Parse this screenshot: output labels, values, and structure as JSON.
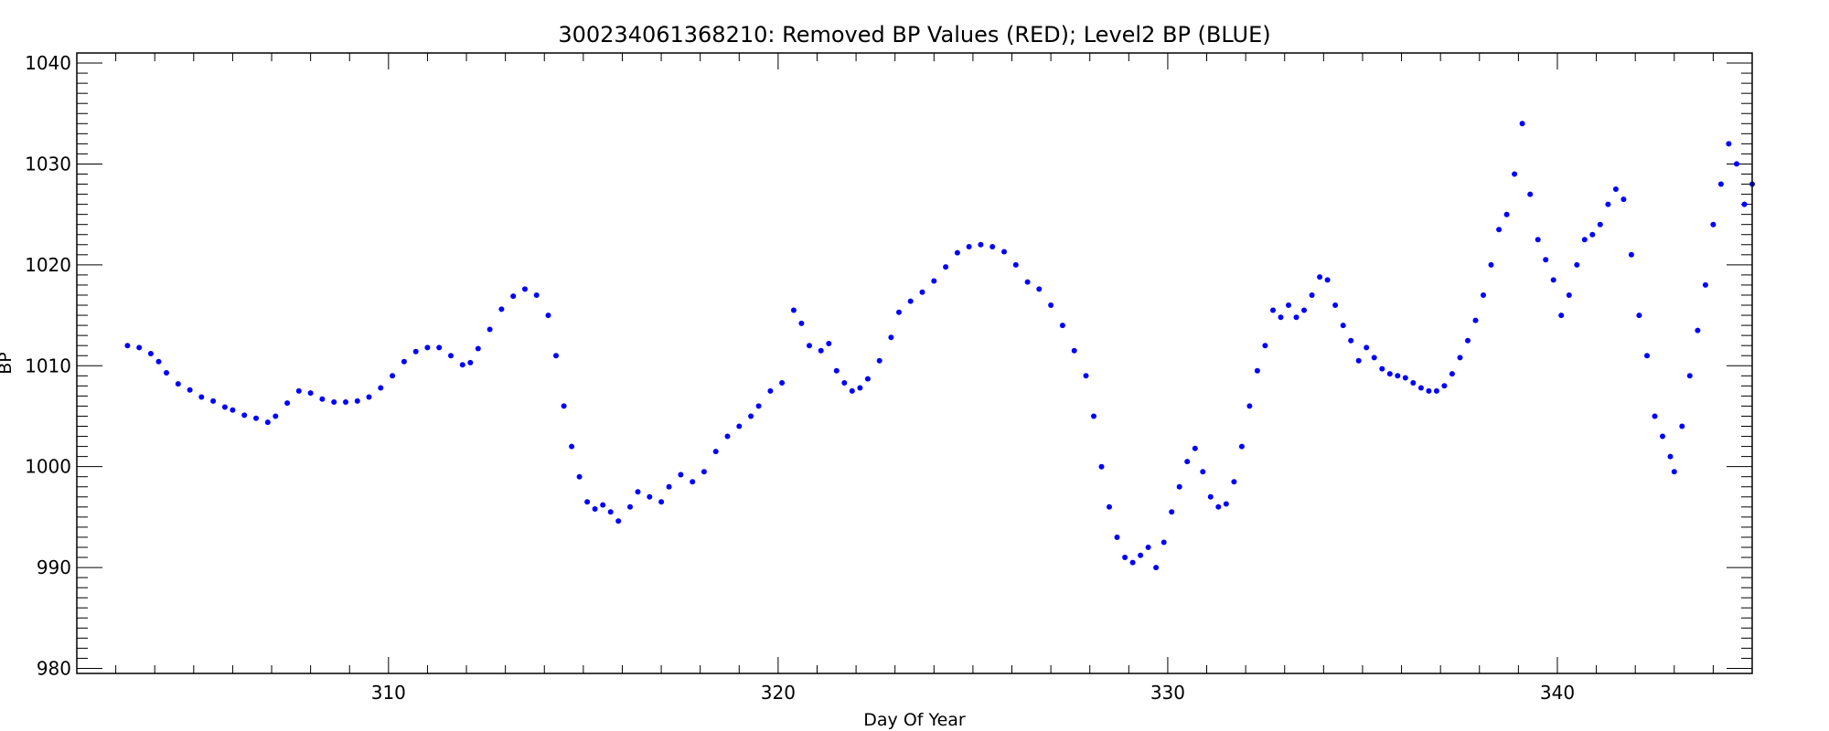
{
  "chart_data": {
    "type": "scatter",
    "title": "300234061368210: Removed BP Values (RED); Level2 BP (BLUE)",
    "xlabel": "Day Of Year",
    "ylabel": "BP",
    "xlim": [
      302,
      345
    ],
    "ylim": [
      979.5,
      1041
    ],
    "x_ticks": [
      310,
      320,
      330,
      340
    ],
    "y_ticks": [
      980,
      990,
      1000,
      1010,
      1020,
      1030,
      1040
    ],
    "grid": false,
    "legend": "none",
    "series": [
      {
        "color": "#0000ff",
        "points": [
          [
            303.3,
            1012.0
          ],
          [
            303.6,
            1011.8
          ],
          [
            303.9,
            1011.2
          ],
          [
            304.1,
            1010.4
          ],
          [
            304.3,
            1009.3
          ],
          [
            304.6,
            1008.2
          ],
          [
            304.9,
            1007.6
          ],
          [
            305.2,
            1006.9
          ],
          [
            305.5,
            1006.5
          ],
          [
            305.8,
            1005.9
          ],
          [
            306.0,
            1005.6
          ],
          [
            306.3,
            1005.1
          ],
          [
            306.6,
            1004.8
          ],
          [
            306.9,
            1004.4
          ],
          [
            307.1,
            1005.0
          ],
          [
            307.4,
            1006.3
          ],
          [
            307.7,
            1007.5
          ],
          [
            308.0,
            1007.3
          ],
          [
            308.3,
            1006.7
          ],
          [
            308.6,
            1006.4
          ],
          [
            308.9,
            1006.4
          ],
          [
            309.2,
            1006.5
          ],
          [
            309.5,
            1006.9
          ],
          [
            309.8,
            1007.8
          ],
          [
            310.1,
            1009.0
          ],
          [
            310.4,
            1010.4
          ],
          [
            310.7,
            1011.4
          ],
          [
            311.0,
            1011.8
          ],
          [
            311.3,
            1011.8
          ],
          [
            311.6,
            1011.0
          ],
          [
            311.9,
            1010.1
          ],
          [
            312.1,
            1010.3
          ],
          [
            312.3,
            1011.7
          ],
          [
            312.6,
            1013.6
          ],
          [
            312.9,
            1015.6
          ],
          [
            313.2,
            1016.9
          ],
          [
            313.5,
            1017.6
          ],
          [
            313.8,
            1017.0
          ],
          [
            314.1,
            1015.0
          ],
          [
            314.3,
            1011.0
          ],
          [
            314.5,
            1006.0
          ],
          [
            314.7,
            1002.0
          ],
          [
            314.9,
            999.0
          ],
          [
            315.1,
            996.5
          ],
          [
            315.3,
            995.8
          ],
          [
            315.5,
            996.2
          ],
          [
            315.7,
            995.5
          ],
          [
            315.9,
            994.6
          ],
          [
            316.2,
            996.0
          ],
          [
            316.4,
            997.5
          ],
          [
            316.7,
            997.0
          ],
          [
            317.0,
            996.5
          ],
          [
            317.2,
            998.0
          ],
          [
            317.5,
            999.2
          ],
          [
            317.8,
            998.5
          ],
          [
            318.1,
            999.5
          ],
          [
            318.4,
            1001.5
          ],
          [
            318.7,
            1003.0
          ],
          [
            319.0,
            1004.0
          ],
          [
            319.3,
            1005.0
          ],
          [
            319.5,
            1006.0
          ],
          [
            319.8,
            1007.5
          ],
          [
            320.1,
            1008.3
          ],
          [
            320.4,
            1015.5
          ],
          [
            320.6,
            1014.2
          ],
          [
            320.8,
            1012.0
          ],
          [
            321.1,
            1011.5
          ],
          [
            321.3,
            1012.2
          ],
          [
            321.5,
            1009.5
          ],
          [
            321.7,
            1008.3
          ],
          [
            321.9,
            1007.5
          ],
          [
            322.1,
            1007.8
          ],
          [
            322.3,
            1008.7
          ],
          [
            322.6,
            1010.5
          ],
          [
            322.9,
            1012.8
          ],
          [
            323.1,
            1015.3
          ],
          [
            323.4,
            1016.4
          ],
          [
            323.7,
            1017.3
          ],
          [
            324.0,
            1018.4
          ],
          [
            324.3,
            1019.8
          ],
          [
            324.6,
            1021.2
          ],
          [
            324.9,
            1021.8
          ],
          [
            325.2,
            1022.0
          ],
          [
            325.5,
            1021.8
          ],
          [
            325.8,
            1021.3
          ],
          [
            326.1,
            1020.0
          ],
          [
            326.4,
            1018.3
          ],
          [
            326.7,
            1017.6
          ],
          [
            327.0,
            1016.0
          ],
          [
            327.3,
            1014.0
          ],
          [
            327.6,
            1011.5
          ],
          [
            327.9,
            1009.0
          ],
          [
            328.1,
            1005.0
          ],
          [
            328.3,
            1000.0
          ],
          [
            328.5,
            996.0
          ],
          [
            328.7,
            993.0
          ],
          [
            328.9,
            991.0
          ],
          [
            329.1,
            990.5
          ],
          [
            329.3,
            991.2
          ],
          [
            329.5,
            992.0
          ],
          [
            329.7,
            990.0
          ],
          [
            329.9,
            992.5
          ],
          [
            330.1,
            995.5
          ],
          [
            330.3,
            998.0
          ],
          [
            330.5,
            1000.5
          ],
          [
            330.7,
            1001.8
          ],
          [
            330.9,
            999.5
          ],
          [
            331.1,
            997.0
          ],
          [
            331.3,
            996.0
          ],
          [
            331.5,
            996.3
          ],
          [
            331.7,
            998.5
          ],
          [
            331.9,
            1002.0
          ],
          [
            332.1,
            1006.0
          ],
          [
            332.3,
            1009.5
          ],
          [
            332.5,
            1012.0
          ],
          [
            332.7,
            1015.5
          ],
          [
            332.9,
            1014.8
          ],
          [
            333.1,
            1016.0
          ],
          [
            333.3,
            1014.8
          ],
          [
            333.5,
            1015.5
          ],
          [
            333.7,
            1017.0
          ],
          [
            333.9,
            1018.8
          ],
          [
            334.1,
            1018.5
          ],
          [
            334.3,
            1016.0
          ],
          [
            334.5,
            1014.0
          ],
          [
            334.7,
            1012.5
          ],
          [
            334.9,
            1010.5
          ],
          [
            335.1,
            1011.8
          ],
          [
            335.3,
            1010.8
          ],
          [
            335.5,
            1009.7
          ],
          [
            335.7,
            1009.2
          ],
          [
            335.9,
            1009.0
          ],
          [
            336.1,
            1008.8
          ],
          [
            336.3,
            1008.3
          ],
          [
            336.5,
            1007.8
          ],
          [
            336.7,
            1007.5
          ],
          [
            336.9,
            1007.5
          ],
          [
            337.1,
            1008.0
          ],
          [
            337.3,
            1009.2
          ],
          [
            337.5,
            1010.8
          ],
          [
            337.7,
            1012.5
          ],
          [
            337.9,
            1014.5
          ],
          [
            338.1,
            1017.0
          ],
          [
            338.3,
            1020.0
          ],
          [
            338.5,
            1023.5
          ],
          [
            338.7,
            1025.0
          ],
          [
            338.9,
            1029.0
          ],
          [
            339.1,
            1034.0
          ],
          [
            339.3,
            1027.0
          ],
          [
            339.5,
            1022.5
          ],
          [
            339.7,
            1020.5
          ],
          [
            339.9,
            1018.5
          ],
          [
            340.1,
            1015.0
          ],
          [
            340.3,
            1017.0
          ],
          [
            340.5,
            1020.0
          ],
          [
            340.7,
            1022.5
          ],
          [
            340.9,
            1023.0
          ],
          [
            341.1,
            1024.0
          ],
          [
            341.3,
            1026.0
          ],
          [
            341.5,
            1027.5
          ],
          [
            341.7,
            1026.5
          ],
          [
            341.9,
            1021.0
          ],
          [
            342.1,
            1015.0
          ],
          [
            342.3,
            1011.0
          ],
          [
            342.5,
            1005.0
          ],
          [
            342.7,
            1003.0
          ],
          [
            342.9,
            1001.0
          ],
          [
            343.0,
            999.5
          ],
          [
            343.2,
            1004.0
          ],
          [
            343.4,
            1009.0
          ],
          [
            343.6,
            1013.5
          ],
          [
            343.8,
            1018.0
          ],
          [
            344.0,
            1024.0
          ],
          [
            344.2,
            1028.0
          ],
          [
            344.4,
            1032.0
          ],
          [
            344.6,
            1030.0
          ],
          [
            344.8,
            1026.0
          ],
          [
            345.0,
            1028.0
          ]
        ]
      }
    ]
  }
}
